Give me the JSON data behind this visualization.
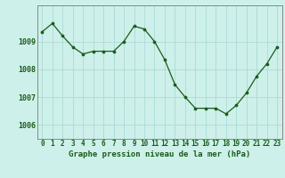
{
  "x": [
    0,
    1,
    2,
    3,
    4,
    5,
    6,
    7,
    8,
    9,
    10,
    11,
    12,
    13,
    14,
    15,
    16,
    17,
    18,
    19,
    20,
    21,
    22,
    23
  ],
  "y": [
    1009.35,
    1009.65,
    1009.2,
    1008.8,
    1008.55,
    1008.65,
    1008.65,
    1008.65,
    1009.0,
    1009.55,
    1009.45,
    1009.0,
    1008.35,
    1007.45,
    1007.0,
    1006.6,
    1006.6,
    1006.6,
    1006.4,
    1006.7,
    1007.15,
    1007.75,
    1008.2,
    1008.8
  ],
  "line_color": "#1a5c1a",
  "marker_color": "#1a5c1a",
  "bg_color": "#cef0ea",
  "grid_color": "#b0ddd8",
  "border_color": "#888888",
  "label_color": "#1a5c1a",
  "title": "Graphe pression niveau de la mer (hPa)",
  "ylim_min": 1005.5,
  "ylim_max": 1010.3,
  "yticks": [
    1006,
    1007,
    1008,
    1009
  ],
  "xticks": [
    0,
    1,
    2,
    3,
    4,
    5,
    6,
    7,
    8,
    9,
    10,
    11,
    12,
    13,
    14,
    15,
    16,
    17,
    18,
    19,
    20,
    21,
    22,
    23
  ],
  "tick_fontsize": 5.5,
  "ytick_fontsize": 6.0,
  "title_fontsize": 6.5
}
